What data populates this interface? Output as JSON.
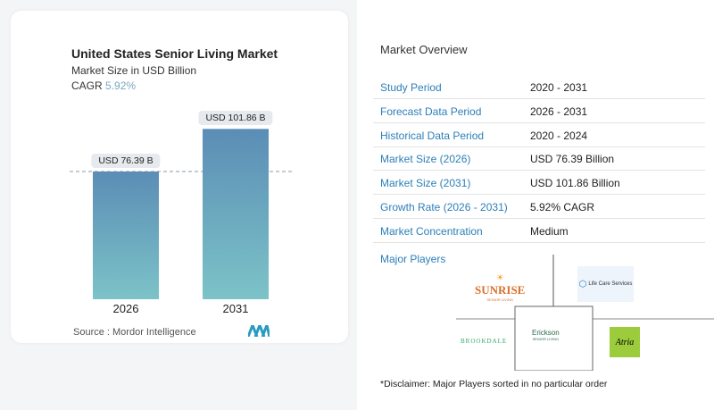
{
  "chart_data": {
    "type": "bar",
    "title": "United States Senior Living Market",
    "subtitle": "Market Size in USD Billion",
    "cagr_label": "CAGR",
    "cagr_value": "5.92%",
    "categories": [
      "2026",
      "2031"
    ],
    "values": [
      76.39,
      101.86
    ],
    "data_labels": [
      "USD 76.39 B",
      "USD 101.86 B"
    ],
    "bar_gradient": [
      "#5b8db5",
      "#7cc3c8"
    ],
    "reference_line": "dashed at 2026 value",
    "source": "Source :  Mordor Intelligence"
  },
  "overview": {
    "title": "Market Overview",
    "rows": [
      {
        "k": "Study Period",
        "v": "2020 - 2031"
      },
      {
        "k": "Forecast Data Period",
        "v": "2026 - 2031"
      },
      {
        "k": "Historical Data Period",
        "v": "2020 - 2024"
      },
      {
        "k": "Market Size (2026)",
        "v": "USD 76.39 Billion"
      },
      {
        "k": "Market Size (2031)",
        "v": "USD 101.86 Billion"
      },
      {
        "k": "Growth Rate (2026 - 2031)",
        "v": "5.92% CAGR"
      },
      {
        "k": "Market Concentration",
        "v": "Medium"
      }
    ]
  },
  "players": {
    "title": "Major Players",
    "logos": [
      "SUNRISE",
      "Life Care Services",
      "BROOKDALE",
      "Erickson",
      "Atria"
    ],
    "sunrise_sub": "SENIOR LIVING",
    "erickson_sub": "SENIOR LIVING"
  },
  "disclaimer": "*Disclaimer: Major Players sorted in no particular order"
}
